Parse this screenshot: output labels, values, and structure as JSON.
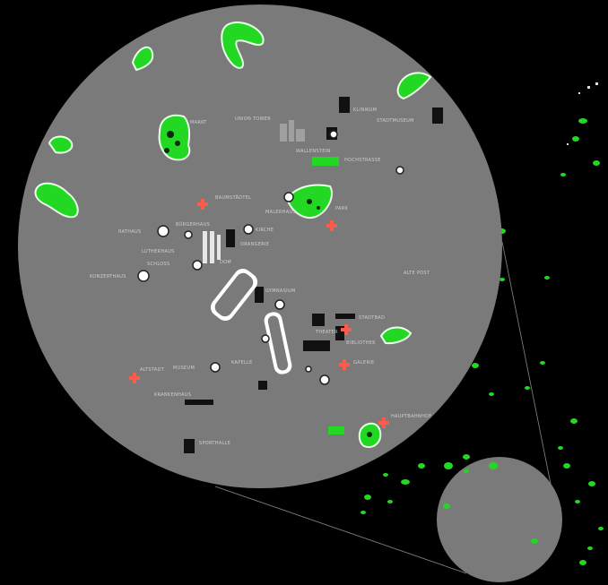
{
  "map": {
    "title": "",
    "colors": {
      "background": "#000000",
      "lens_fill": "#7a7a7a",
      "park": "#22d822",
      "hospital_cross": "#ff5a4a",
      "landmark": "#ffffff",
      "building": "#111111"
    },
    "inset_view": {
      "shape": "circle",
      "role": "magnified detail of the small circle at bottom-right"
    },
    "place_labels": [
      {
        "id": "l1",
        "text": "MARKT"
      },
      {
        "id": "l2",
        "text": "UNION TOWER"
      },
      {
        "id": "l3",
        "text": "KLINIKUM"
      },
      {
        "id": "l4",
        "text": "STADTMUSEUM"
      },
      {
        "id": "l5",
        "text": "WALLENSTEIN"
      },
      {
        "id": "l6",
        "text": "HOCHSTRASSE"
      },
      {
        "id": "l7",
        "text": "BAUMSTÄDTEL"
      },
      {
        "id": "l8",
        "text": "MALERHAUS"
      },
      {
        "id": "l9",
        "text": "PARK"
      },
      {
        "id": "l10",
        "text": "RATHAUS"
      },
      {
        "id": "l11",
        "text": "BÜRGERHAUS"
      },
      {
        "id": "l12",
        "text": "KIRCHE"
      },
      {
        "id": "l13",
        "text": "ORANGERIE"
      },
      {
        "id": "l14",
        "text": "LUTHERHAUS"
      },
      {
        "id": "l15",
        "text": "SCHLOSS"
      },
      {
        "id": "l16",
        "text": "KONZERTHAUS"
      },
      {
        "id": "l17",
        "text": "DOM"
      },
      {
        "id": "l18",
        "text": "ALTE POST"
      },
      {
        "id": "l19",
        "text": "GYMNASIUM"
      },
      {
        "id": "l20",
        "text": "STADTBAD"
      },
      {
        "id": "l21",
        "text": "THEATER"
      },
      {
        "id": "l22",
        "text": "BIBLIOTHEK"
      },
      {
        "id": "l23",
        "text": "GALERIE"
      },
      {
        "id": "l24",
        "text": "KAPELLE"
      },
      {
        "id": "l25",
        "text": "MUSEUM"
      },
      {
        "id": "l26",
        "text": "ALTSTADT"
      },
      {
        "id": "l27",
        "text": "KRANKENHAUS"
      },
      {
        "id": "l28",
        "text": "HAUPTBAHNHOF"
      },
      {
        "id": "l29",
        "text": "SPORTHALLE"
      }
    ],
    "legend": []
  }
}
